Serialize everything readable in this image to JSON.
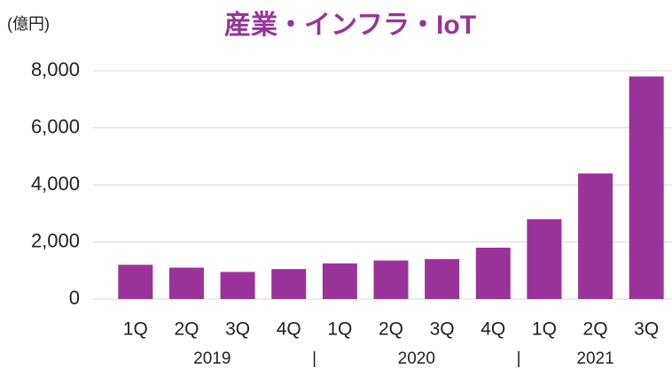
{
  "chart_data": {
    "type": "bar",
    "title": "産業・インフラ・IoT",
    "y_unit": "(億円)",
    "groups": [
      {
        "name": "2019",
        "categories": [
          "1Q",
          "2Q",
          "3Q",
          "4Q"
        ]
      },
      {
        "name": "2020",
        "categories": [
          "1Q",
          "2Q",
          "3Q",
          "4Q"
        ]
      },
      {
        "name": "2021",
        "categories": [
          "1Q",
          "2Q",
          "3Q"
        ]
      }
    ],
    "separator": "|",
    "values": [
      1200,
      1100,
      950,
      1050,
      1250,
      1350,
      1400,
      1800,
      2800,
      4400,
      7800
    ],
    "color": "#993399",
    "title_color": "#993399",
    "ylim": [
      0,
      8000
    ],
    "yticks": [
      0,
      {
        "value": 2000,
        "label": "2,000"
      },
      {
        "value": 4000,
        "label": "4,000"
      },
      {
        "value": 6000,
        "label": "6,000"
      },
      {
        "value": 8000,
        "label": "8,000"
      }
    ],
    "grid": true
  }
}
